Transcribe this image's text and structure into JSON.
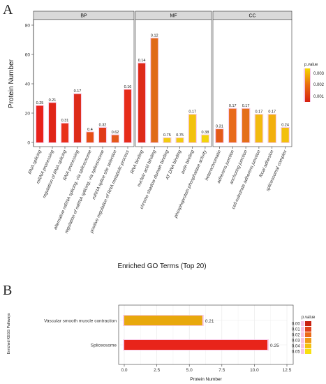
{
  "panel_a_letter": "A",
  "panel_b_letter": "B",
  "chart_data": [
    {
      "type": "bar",
      "title": "",
      "xlabel": "Enriched GO Terms (Top 20)",
      "ylabel": "Protein Number",
      "ylim": [
        0,
        80
      ],
      "yticks": [
        0,
        20,
        40,
        60,
        80
      ],
      "grid": false,
      "legend": {
        "title": "p.value",
        "ticks": [
          "0.003",
          "0.002",
          "0.001"
        ],
        "placement": "right",
        "colors": [
          "#f5d800",
          "#e86a10",
          "#d62010"
        ]
      },
      "facets": [
        {
          "name": "BP",
          "categories": [
            "RNA splicing",
            "mRNA processing",
            "regulation of RNA splicing",
            "RNA processing",
            "alternative mRNA splicing, via spliceosome",
            "regulation of mRNA splicing, via spliceosome",
            "mRNA splice site selection",
            "positive regulation of RNA metabolic process"
          ],
          "values": [
            25,
            27,
            13,
            33,
            7,
            10,
            5,
            36
          ],
          "labels": [
            "0.25",
            "0.21",
            "0.31",
            "0.17",
            "0.4",
            "0.32",
            "0.62",
            "0.16"
          ],
          "colors": [
            "#e8201a",
            "#e02418",
            "#e8301a",
            "#dd2a1a",
            "#e64e14",
            "#e03a18",
            "#e4581a",
            "#e62c1a"
          ]
        },
        {
          "name": "MF",
          "categories": [
            "RNA binding",
            "nucleic acid binding",
            "chromo shadow domain binding",
            "AT DNA binding",
            "actin binding",
            "phosphoprotein phosphatase activity"
          ],
          "values": [
            54,
            71,
            3,
            3,
            19,
            5
          ],
          "labels": [
            "0.14",
            "0.12",
            "0.75",
            "0.75",
            "0.17",
            "0.38"
          ],
          "colors": [
            "#de2a18",
            "#e06a1a",
            "#f2cc10",
            "#f2cc10",
            "#f2c20e",
            "#f2d40c"
          ]
        },
        {
          "name": "CC",
          "categories": [
            "heterochromatin",
            "adherens junction",
            "anchoring junction",
            "cell-substrate adherens junction",
            "focal adhesion",
            "spliceosomal complex"
          ],
          "values": [
            9,
            23,
            23,
            19,
            19,
            10
          ],
          "labels": [
            "0.31",
            "0.17",
            "0.17",
            "0.17",
            "0.17",
            "0.24"
          ],
          "colors": [
            "#e45a18",
            "#e86a1a",
            "#e46e1a",
            "#f2ba10",
            "#f2b00e",
            "#f2c00e"
          ]
        }
      ]
    },
    {
      "type": "bar",
      "orientation": "horizontal",
      "title": "",
      "xlabel": "Protein Number",
      "ylabel": "Enriched KEGG Pathways",
      "xlim": [
        0,
        12.5
      ],
      "xticks": [
        "0.0",
        "2.5",
        "5.0",
        "7.5",
        "10.0",
        "12.5"
      ],
      "grid": true,
      "categories": [
        "Vascular smooth muscle contraction",
        "Spliceosome"
      ],
      "values": [
        6,
        11
      ],
      "labels": [
        "0.21",
        "0.25"
      ],
      "colors": [
        "#e8a80c",
        "#e8241a"
      ],
      "legend": {
        "title": "p.value",
        "ticks": [
          "0.00",
          "0.01",
          "0.02",
          "0.03",
          "0.04",
          "0.05"
        ],
        "placement": "right",
        "colors": [
          "#c82010",
          "#e0401a",
          "#ea6a1a",
          "#f09a18",
          "#f4c012",
          "#f7e010"
        ]
      }
    }
  ]
}
